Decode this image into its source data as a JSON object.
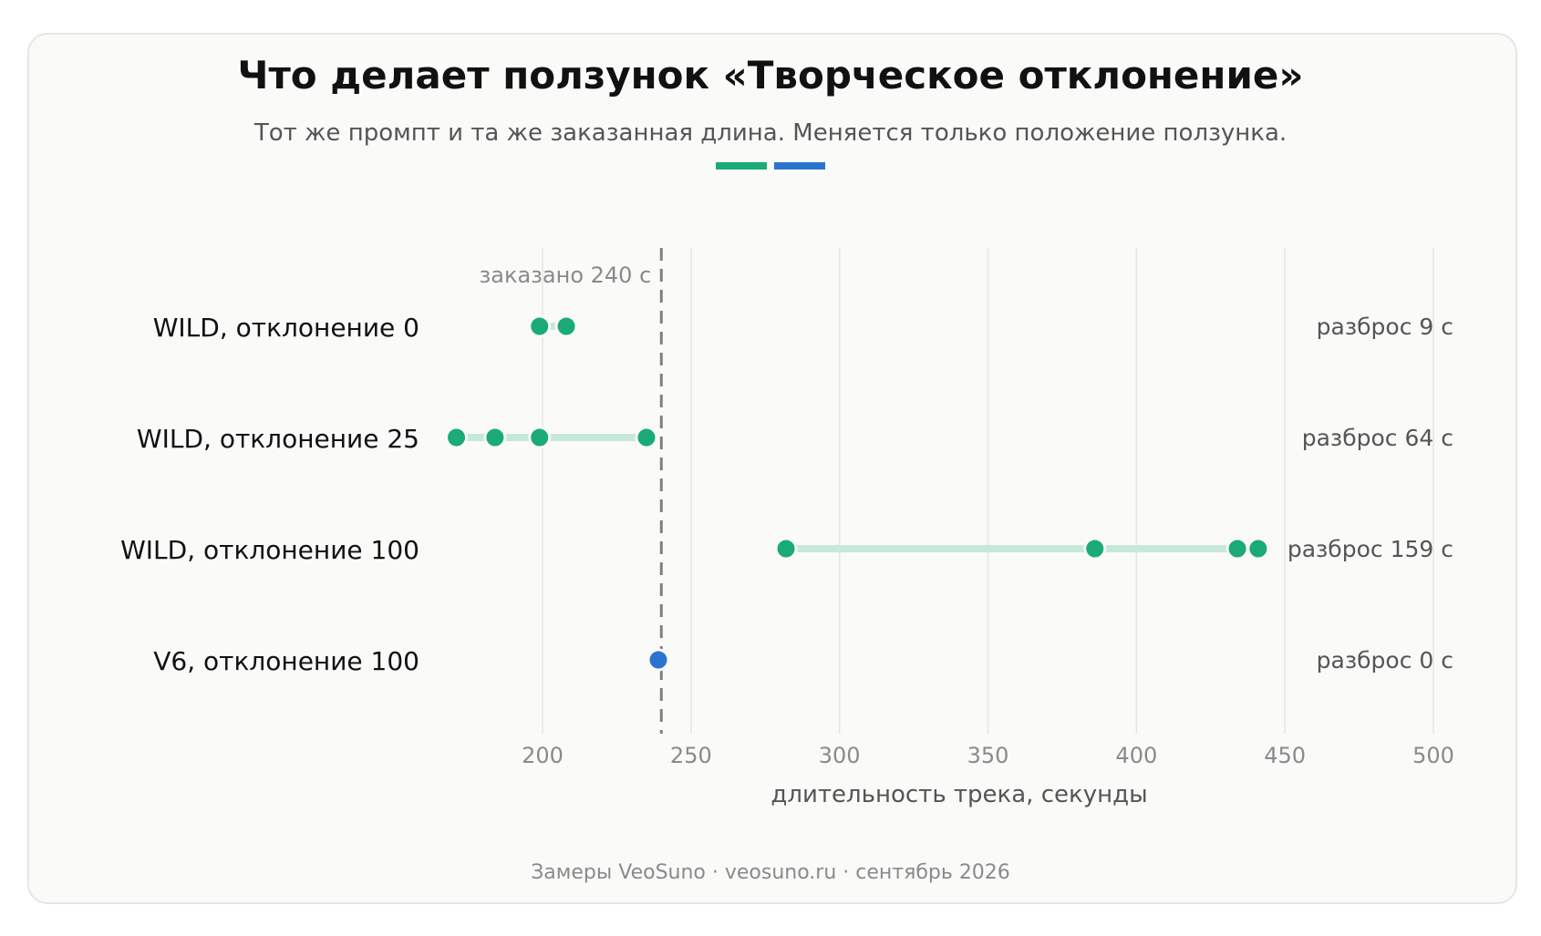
{
  "header": {
    "title": "Что делает ползунок «Творческое отклонение»",
    "subtitle": "Тот же промпт и та же заказанная длина. Меняется только положение ползунка."
  },
  "colors": {
    "wild": "#1aab78",
    "wild_range": "#c7e8d9",
    "v6": "#2a74cf",
    "target_line": "#808080",
    "grid": "#e6e6e3"
  },
  "chart_data": {
    "type": "scatter",
    "xlabel": "длительность трека, секунды",
    "xlim": [
      170,
      505
    ],
    "xticks": [
      200,
      250,
      300,
      350,
      400,
      450,
      500
    ],
    "target": {
      "value": 240,
      "label": "заказано 240 с"
    },
    "rows": [
      {
        "label": "WILD, отклонение 0",
        "series": "wild",
        "values": [
          199,
          208
        ],
        "spread_label": "разброс 9 с"
      },
      {
        "label": "WILD, отклонение 25",
        "series": "wild",
        "values": [
          171,
          184,
          199,
          235
        ],
        "spread_label": "разброс 64 с"
      },
      {
        "label": "WILD, отклонение 100",
        "series": "wild",
        "values": [
          282,
          386,
          434,
          441
        ],
        "spread_label": "разброс 159 с"
      },
      {
        "label": "V6, отклонение 100",
        "series": "v6",
        "values": [
          239
        ],
        "spread_label": "разброс 0 с"
      }
    ],
    "grid": true
  },
  "footer": {
    "source": "Замеры VeoSuno · veosuno.ru · сентябрь 2026"
  }
}
